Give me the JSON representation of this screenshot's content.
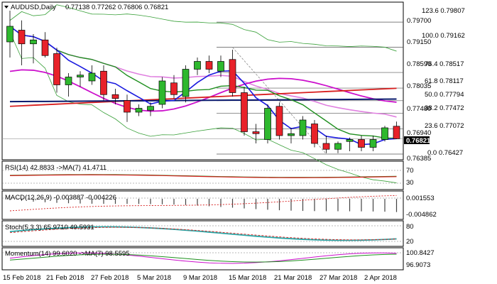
{
  "header": {
    "symbol": "AUDUSD,Daily",
    "ohlc": "0.77138 0.77262 0.76806 0.76821"
  },
  "price_axis": {
    "labels": [
      "0.79700",
      "0.79150",
      "0.78590",
      "0.78035",
      "0.77480",
      "0.76940",
      "0.76385"
    ],
    "current_price": "0.76821",
    "current_color": "#000000"
  },
  "fibo": {
    "levels": [
      {
        "label": "123.6",
        "value": "0.79807"
      },
      {
        "label": "100.0",
        "value": "0.79162"
      },
      {
        "label": "76.4",
        "value": "0.78517"
      },
      {
        "label": "61.8",
        "value": "0.78117"
      },
      {
        "label": "50.0",
        "value": "0.77794"
      },
      {
        "label": "38.2",
        "value": "0.77472"
      },
      {
        "label": "23.6",
        "value": "0.77072"
      },
      {
        "label": "0.0",
        "value": "0.76427"
      }
    ]
  },
  "dates": [
    "15 Feb 2018",
    "21 Feb 2018",
    "27 Feb 2018",
    "5 Mar 2018",
    "9 Mar 2018",
    "15 Mar 2018",
    "21 Mar 2018",
    "27 Mar 2018",
    "2 Apr 2018"
  ],
  "chart_data": {
    "type": "candlestick",
    "price_range": [
      0.763,
      0.803
    ],
    "candles": [
      {
        "o": 0.793,
        "h": 0.801,
        "l": 0.789,
        "c": 0.797
      },
      {
        "o": 0.796,
        "h": 0.7985,
        "l": 0.787,
        "c": 0.7925
      },
      {
        "o": 0.7925,
        "h": 0.795,
        "l": 0.7875,
        "c": 0.7935
      },
      {
        "o": 0.7935,
        "h": 0.7955,
        "l": 0.789,
        "c": 0.7895
      },
      {
        "o": 0.79,
        "h": 0.7915,
        "l": 0.78,
        "c": 0.782
      },
      {
        "o": 0.782,
        "h": 0.785,
        "l": 0.779,
        "c": 0.784
      },
      {
        "o": 0.784,
        "h": 0.7855,
        "l": 0.7815,
        "c": 0.7845
      },
      {
        "o": 0.783,
        "h": 0.787,
        "l": 0.782,
        "c": 0.785
      },
      {
        "o": 0.7855,
        "h": 0.787,
        "l": 0.778,
        "c": 0.7795
      },
      {
        "o": 0.7795,
        "h": 0.781,
        "l": 0.777,
        "c": 0.7785
      },
      {
        "o": 0.778,
        "h": 0.7795,
        "l": 0.7725,
        "c": 0.775
      },
      {
        "o": 0.775,
        "h": 0.777,
        "l": 0.774,
        "c": 0.776
      },
      {
        "o": 0.7755,
        "h": 0.7775,
        "l": 0.774,
        "c": 0.7765
      },
      {
        "o": 0.777,
        "h": 0.784,
        "l": 0.776,
        "c": 0.783
      },
      {
        "o": 0.7825,
        "h": 0.7845,
        "l": 0.7785,
        "c": 0.7795
      },
      {
        "o": 0.779,
        "h": 0.787,
        "l": 0.7775,
        "c": 0.786
      },
      {
        "o": 0.786,
        "h": 0.789,
        "l": 0.7845,
        "c": 0.788
      },
      {
        "o": 0.788,
        "h": 0.7895,
        "l": 0.785,
        "c": 0.786
      },
      {
        "o": 0.7855,
        "h": 0.7895,
        "l": 0.784,
        "c": 0.788
      },
      {
        "o": 0.7885,
        "h": 0.791,
        "l": 0.779,
        "c": 0.78
      },
      {
        "o": 0.78,
        "h": 0.7815,
        "l": 0.769,
        "c": 0.77
      },
      {
        "o": 0.77,
        "h": 0.772,
        "l": 0.767,
        "c": 0.7695
      },
      {
        "o": 0.768,
        "h": 0.777,
        "l": 0.767,
        "c": 0.776
      },
      {
        "o": 0.7765,
        "h": 0.7775,
        "l": 0.768,
        "c": 0.769
      },
      {
        "o": 0.769,
        "h": 0.771,
        "l": 0.767,
        "c": 0.7695
      },
      {
        "o": 0.769,
        "h": 0.774,
        "l": 0.768,
        "c": 0.773
      },
      {
        "o": 0.772,
        "h": 0.773,
        "l": 0.766,
        "c": 0.767
      },
      {
        "o": 0.767,
        "h": 0.769,
        "l": 0.7645,
        "c": 0.7655
      },
      {
        "o": 0.7655,
        "h": 0.7675,
        "l": 0.7645,
        "c": 0.767
      },
      {
        "o": 0.7675,
        "h": 0.7685,
        "l": 0.765,
        "c": 0.768
      },
      {
        "o": 0.768,
        "h": 0.769,
        "l": 0.765,
        "c": 0.766
      },
      {
        "o": 0.766,
        "h": 0.769,
        "l": 0.765,
        "c": 0.768
      },
      {
        "o": 0.768,
        "h": 0.7715,
        "l": 0.7675,
        "c": 0.771
      },
      {
        "o": 0.7714,
        "h": 0.7726,
        "l": 0.7681,
        "c": 0.7682
      }
    ],
    "bull_color": "#2eb82e",
    "bear_color": "#e8222a"
  },
  "indicators": {
    "rsi": {
      "title": "RSI(14) 42.8833 ->MA(7) 41.4711",
      "levels": [
        "70",
        "30"
      ]
    },
    "macd": {
      "title": "MACD(12,26,9) -0.003887 -0.004226",
      "levels": [
        "0.001553",
        "-0.004862"
      ]
    },
    "stoch": {
      "title": "Stoch(5,3,3) 65.9710 49.5931",
      "levels": [
        "80",
        "20"
      ]
    },
    "momentum": {
      "title": "Momentum(14) 99.6020 ->MA(7) 98.5595",
      "levels": [
        "100.8427",
        "96.9073"
      ]
    }
  },
  "colors": {
    "ma_blue": "#1a1adf",
    "ma_green": "#1f8f1f",
    "ma_red": "#d81e1e",
    "ma_navy": "#0a1a6e",
    "ma_magenta": "#cc10cc",
    "ma_pink": "#e080e0",
    "band_green": "#39a039",
    "stoch_teal": "#2aa7a7"
  }
}
